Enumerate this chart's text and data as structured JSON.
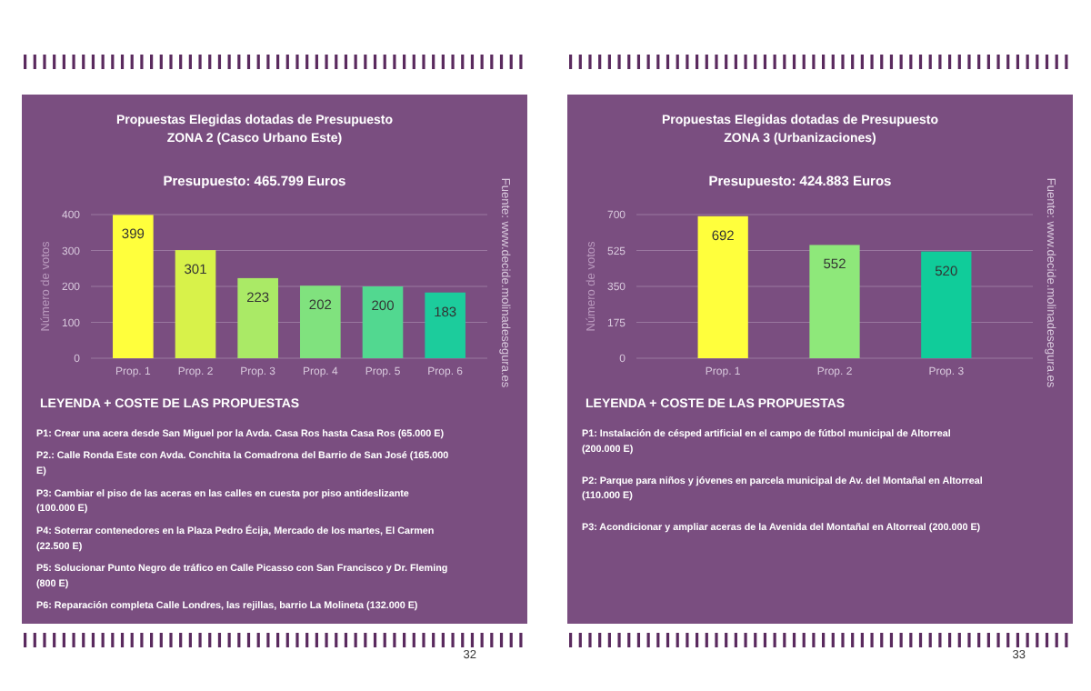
{
  "chart_data": [
    {
      "type": "bar",
      "title": "Propuestas Elegidas dotadas de Presupuesto\nZONA 2 (Casco Urbano Este)",
      "subtitle": "Presupuesto: 465.799 Euros",
      "ylabel": "Número de votos",
      "categories": [
        "Prop. 1",
        "Prop. 2",
        "Prop. 3",
        "Prop. 4",
        "Prop. 5",
        "Prop. 6"
      ],
      "values": [
        399,
        301,
        223,
        202,
        200,
        183
      ],
      "colors": [
        "#ffff3c",
        "#d8f24a",
        "#aaea66",
        "#80e27e",
        "#52d890",
        "#1ccc9c"
      ],
      "ylim": [
        0,
        400
      ],
      "yticks": [
        0,
        100,
        200,
        300,
        400
      ],
      "grid": "y",
      "data_labels": true,
      "annotations": [
        "Fuente: www.decide.molinadesegura.es",
        "LEYENDA + COSTE DE LAS PROPUESTAS",
        "P1:  Crear una acera desde San Miguel por la Avda. Casa Ros hasta Casa Ros (65.000 E)",
        "P2.: Calle Ronda Este con Avda. Conchita la Comadrona del Barrio de San José (165.000 E)",
        "P3: Cambiar el piso de las aceras en las calles en cuesta por piso antideslizante (100.000 E)",
        "P4: Soterrar contenedores en la Plaza Pedro Écija, Mercado de los martes, El Carmen (22.500 E)",
        "P5: Solucionar Punto Negro de tráfico en Calle Picasso con San Francisco y Dr. Fleming (800 E)",
        "P6: Reparación completa Calle Londres, las rejillas, barrio La Molineta (132.000 E)",
        "32"
      ]
    },
    {
      "type": "bar",
      "title": "Propuestas Elegidas dotadas de Presupuesto\nZONA 3 (Urbanizaciones)",
      "subtitle": "Presupuesto: 424.883 Euros",
      "ylabel": "Número de votos",
      "categories": [
        "Prop. 1",
        "Prop. 2",
        "Prop. 3"
      ],
      "values": [
        692,
        552,
        520
      ],
      "colors": [
        "#ffff3c",
        "#8ee87a",
        "#10cc9a"
      ],
      "ylim": [
        0,
        700
      ],
      "yticks": [
        0,
        175,
        350,
        525,
        700
      ],
      "grid": "y",
      "data_labels": true,
      "annotations": [
        "Fuente: www.decide.molinadesegura.es",
        "LEYENDA + COSTE DE LAS PROPUESTAS",
        "P1:  Instalación de césped artificial en el campo de fútbol municipal de Altorreal (200.000 E)",
        "P2: Parque para niños y jóvenes en parcela municipal de Av. del Montañal en Altorreal (110.000 E)",
        "P3: Acondicionar y ampliar aceras de la Avenida del Montañal en Altorreal (200.000 E)",
        "33"
      ]
    }
  ]
}
